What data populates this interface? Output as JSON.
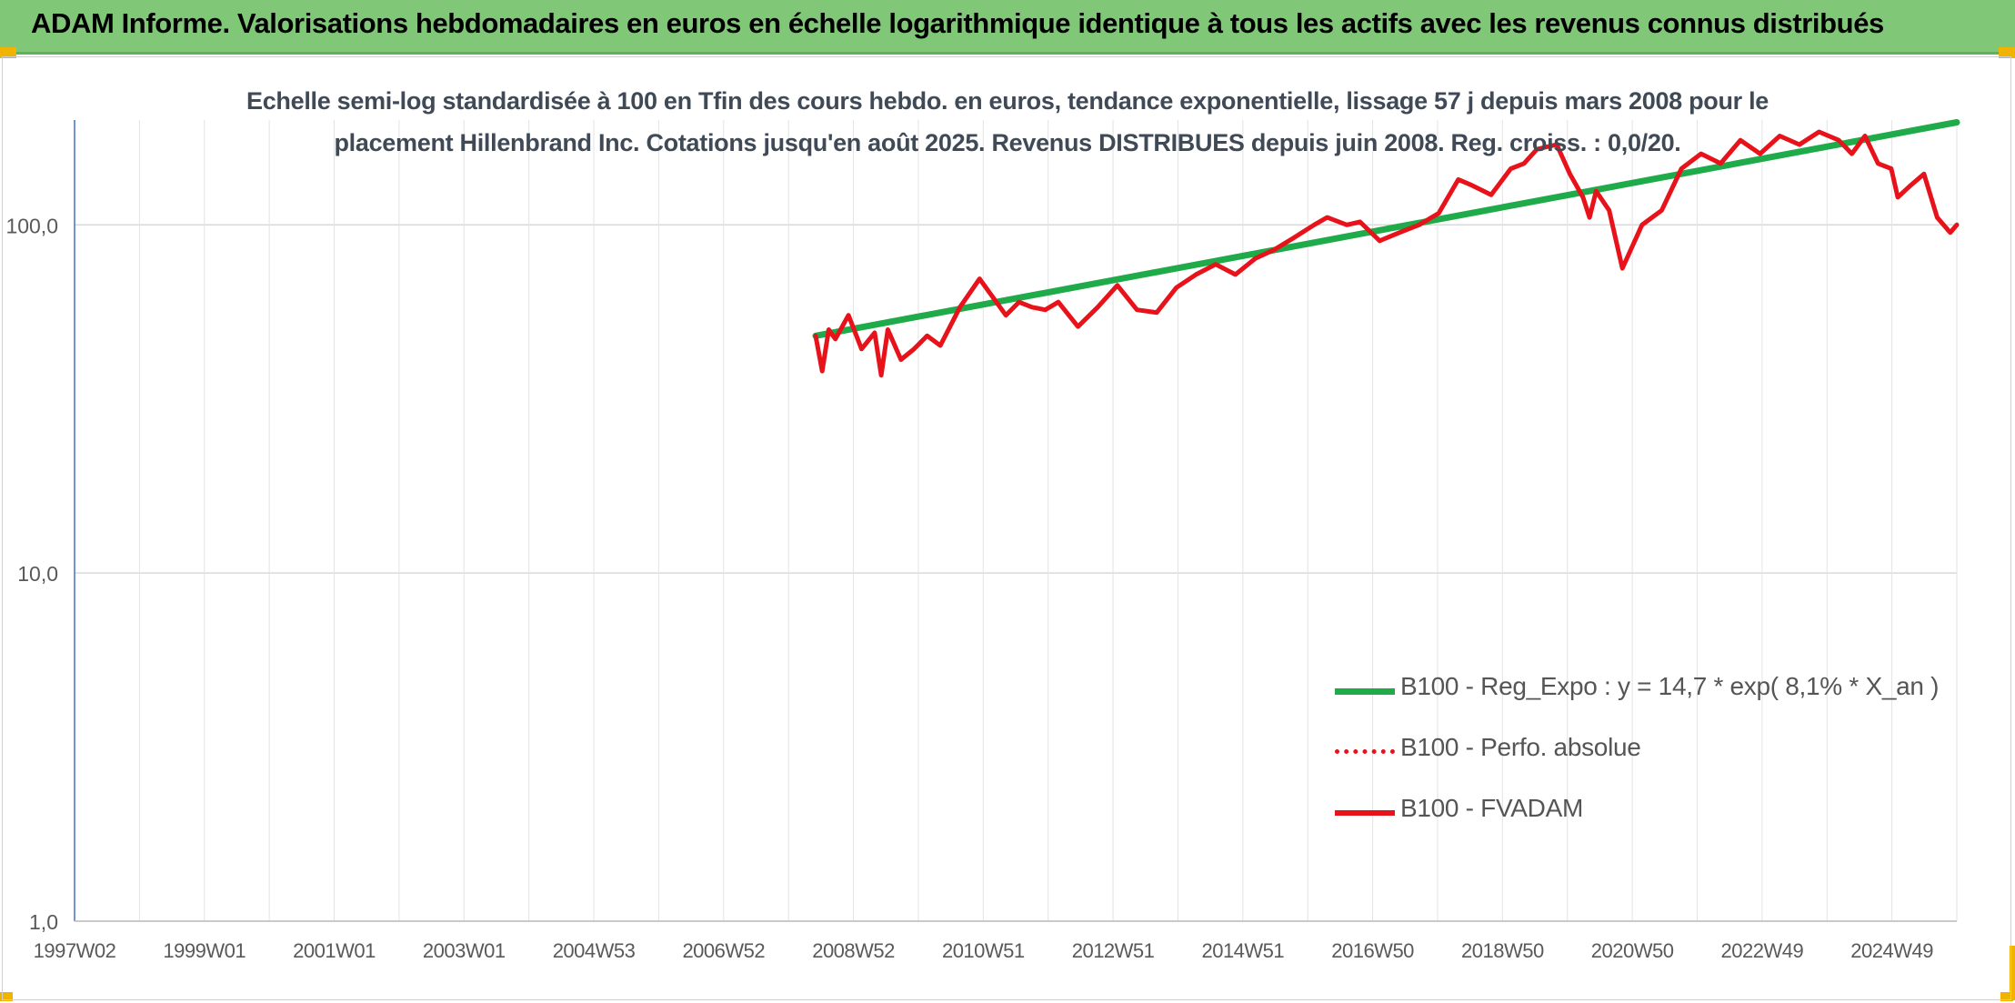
{
  "header": {
    "title": "ADAM Informe. Valorisations hebdomadaires en euros en échelle logarithmique identique à tous les actifs avec les revenus connus distribués"
  },
  "colors": {
    "header_bg": "#80c878",
    "accent_corners": "#f0b400",
    "regression_line": "#1fab4a",
    "fvadam_line": "#e8121a",
    "perfo_line": "#e8121a"
  },
  "chart_data": {
    "type": "line",
    "title_lines": [
      "Echelle semi-log standardisée à 100 en Tfin des cours hebdo. en euros, tendance exponentielle, lissage 57 j depuis mars 2008 pour le",
      "placement Hillenbrand Inc. Cotations jusqu'en août 2025. Revenus DISTRIBUES depuis juin 2008. Reg. croiss. : 0,0/20."
    ],
    "y_scale": "log",
    "ylim": [
      1,
      200
    ],
    "y_ticks": [
      "1,0",
      "10,0",
      "100,0"
    ],
    "x_range": [
      1997.0,
      2025.7
    ],
    "x_ticks": [
      "1997W02",
      "1999W01",
      "2001W01",
      "2003W01",
      "2004W53",
      "2006W52",
      "2008W52",
      "2010W51",
      "2012W51",
      "2014W51",
      "2016W50",
      "2018W50",
      "2020W50",
      "2022W49",
      "2024W49"
    ],
    "vertical_grid": true,
    "legend_position": "bottom-right",
    "legend": [
      "B100 - Reg_Expo : y = 14,7 * exp( 8,1% *  X_an )",
      "B100 - Perfo. absolue",
      "B100 - FVADAM"
    ],
    "series": [
      {
        "name": "B100 - Reg_Expo : y = 14,7 * exp( 8,1% *  X_an )",
        "style": "solid-thick",
        "x": [
          2008.3,
          2025.7
        ],
        "values": [
          48,
          197
        ]
      },
      {
        "name": "B100 - Perfo. absolue",
        "style": "dotted",
        "x": [],
        "values": []
      },
      {
        "name": "B100 - FVADAM",
        "style": "solid",
        "x": [
          2008.3,
          2008.4,
          2008.5,
          2008.6,
          2008.8,
          2009.0,
          2009.2,
          2009.3,
          2009.4,
          2009.6,
          2009.8,
          2010.0,
          2010.2,
          2010.5,
          2010.8,
          2011.0,
          2011.2,
          2011.4,
          2011.6,
          2011.8,
          2012.0,
          2012.3,
          2012.6,
          2012.9,
          2013.2,
          2013.5,
          2013.8,
          2014.1,
          2014.4,
          2014.7,
          2015.0,
          2015.3,
          2015.6,
          2015.9,
          2016.1,
          2016.4,
          2016.6,
          2016.9,
          2017.2,
          2017.5,
          2017.8,
          2018.1,
          2018.3,
          2018.6,
          2018.9,
          2019.1,
          2019.3,
          2019.6,
          2019.8,
          2020.0,
          2020.1,
          2020.2,
          2020.4,
          2020.6,
          2020.9,
          2021.2,
          2021.5,
          2021.8,
          2022.1,
          2022.4,
          2022.7,
          2023.0,
          2023.3,
          2023.6,
          2023.9,
          2024.1,
          2024.3,
          2024.5,
          2024.7,
          2024.8,
          2025.0,
          2025.2,
          2025.4,
          2025.6,
          2025.7
        ],
        "values": [
          48,
          38,
          50,
          47,
          55,
          44,
          49,
          37,
          50,
          41,
          44,
          48,
          45,
          58,
          70,
          62,
          55,
          60,
          58,
          57,
          60,
          51,
          58,
          67,
          57,
          56,
          66,
          72,
          77,
          72,
          80,
          85,
          92,
          100,
          105,
          100,
          102,
          90,
          95,
          100,
          108,
          135,
          130,
          122,
          145,
          150,
          165,
          170,
          140,
          120,
          105,
          125,
          110,
          75,
          100,
          110,
          145,
          160,
          150,
          175,
          160,
          180,
          170,
          185,
          175,
          160,
          180,
          150,
          145,
          120,
          130,
          140,
          105,
          95,
          100
        ]
      }
    ]
  }
}
